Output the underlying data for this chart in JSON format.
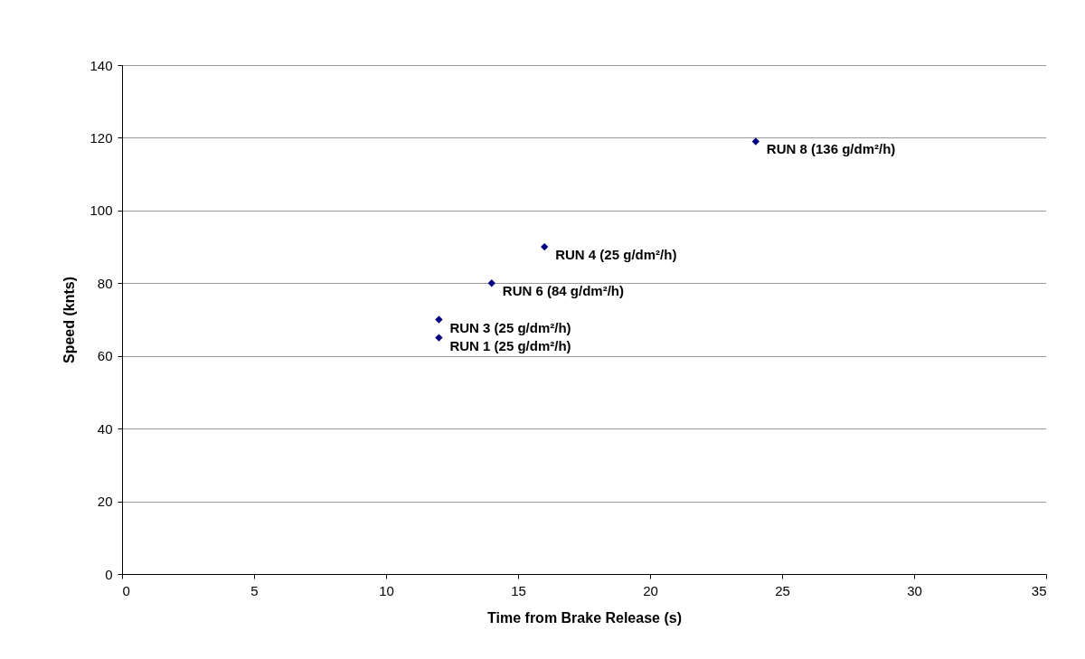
{
  "chart_data": {
    "type": "scatter",
    "xlabel": "Time from Brake Release (s)",
    "ylabel": "Speed (knts)",
    "x": [
      12,
      12,
      14,
      16,
      24
    ],
    "series": [
      {
        "color": "#000080",
        "values": [
          65,
          70,
          80,
          90,
          119
        ]
      }
    ],
    "xlim": [
      0,
      35
    ],
    "xticks": [
      0,
      5,
      10,
      15,
      20,
      25,
      30,
      35
    ],
    "ylim": [
      0,
      140
    ],
    "yticks": [
      0,
      20,
      40,
      60,
      80,
      100,
      120,
      140
    ],
    "grid": "y",
    "marker": "diamond",
    "annotations": [
      {
        "text": "RUN 1 (25 g/dm²/h)",
        "x": 12,
        "y": 65
      },
      {
        "text": "RUN 3 (25 g/dm²/h)",
        "x": 12,
        "y": 70
      },
      {
        "text": "RUN 6 (84 g/dm²/h)",
        "x": 14,
        "y": 80
      },
      {
        "text": "RUN 4 (25 g/dm²/h)",
        "x": 16,
        "y": 90
      },
      {
        "text": "RUN 8 (136 g/dm²/h)",
        "x": 24,
        "y": 119
      }
    ]
  }
}
